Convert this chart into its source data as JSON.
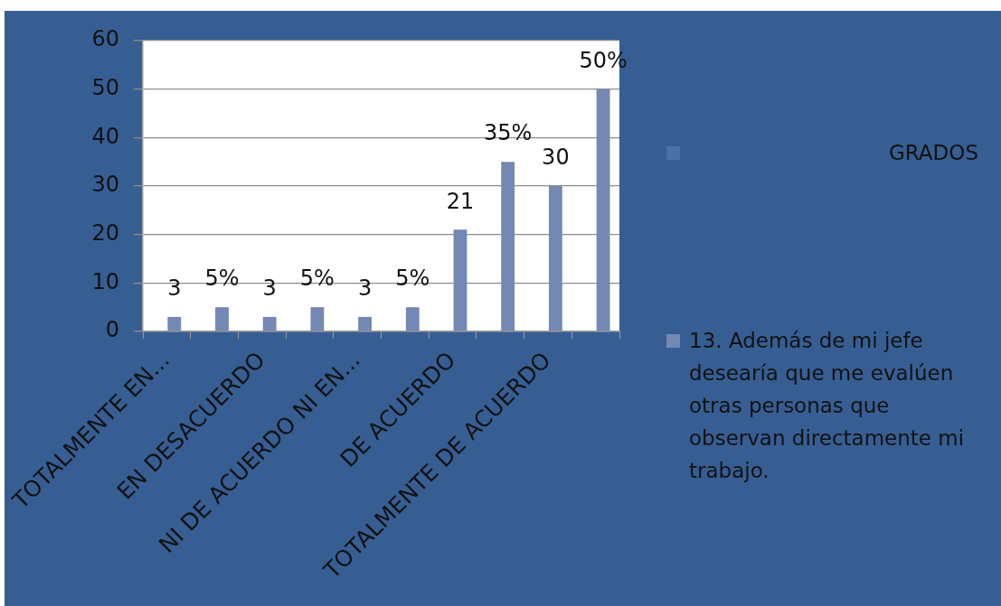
{
  "chart_data": {
    "type": "bar",
    "categories": [
      "TOTALMENTE EN...",
      null,
      "EN DESACUERDO",
      null,
      "NI DE ACUERDO NI EN...",
      null,
      "DE ACUERDO",
      null,
      "TOTALMENTE DE ACUERDO",
      null
    ],
    "series": [
      {
        "name": "GRADOS",
        "values": [
          null,
          null,
          null,
          null,
          null,
          null,
          null,
          null,
          null,
          null
        ]
      },
      {
        "name": "13. Además de mi jefe desearía que me evalúen otras personas que observan directamente mi trabajo.",
        "color": "#7389b3",
        "values": [
          3,
          5,
          3,
          5,
          3,
          5,
          21,
          35,
          30,
          50
        ],
        "value_labels": [
          "3",
          "5%",
          "3",
          "5%",
          "3",
          "5%",
          "21",
          "35%",
          "30",
          "50%"
        ]
      }
    ],
    "ylim": [
      0,
      60
    ],
    "yticks": [
      0,
      10,
      20,
      30,
      40,
      50,
      60
    ],
    "grid": "y",
    "legend": "right"
  }
}
